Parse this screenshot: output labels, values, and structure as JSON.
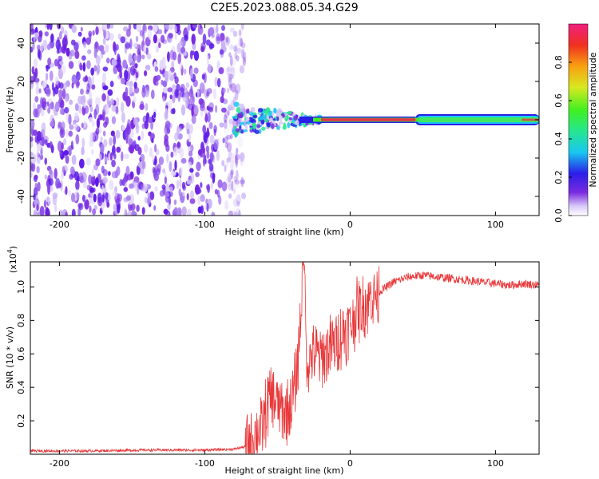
{
  "title": "C2E5.2023.088.05.34.G29",
  "colors": {
    "snr_line": "#e8383a",
    "spectrum_ridge": "#e8334a",
    "noise_purple": "#7a2be0"
  },
  "chart_data": [
    {
      "type": "heatmap",
      "xlabel": "Height of straight line (km)",
      "ylabel": "Frequency (Hz)",
      "xlim": [
        -220,
        130
      ],
      "ylim": [
        -50,
        50
      ],
      "x_ticks": [
        -200,
        -100,
        0,
        100
      ],
      "x_tick_labels": [
        "-200",
        "-100",
        "0",
        "100"
      ],
      "y_ticks": [
        -40,
        -20,
        0,
        20,
        40
      ],
      "y_tick_labels": [
        "-40",
        "-20",
        "0",
        "20",
        "40"
      ],
      "colorbar": {
        "label": "Normalized spectral amplitude",
        "range": [
          0,
          1
        ],
        "ticks": [
          0.0,
          0.2,
          0.4,
          0.6,
          0.8
        ],
        "tick_labels": [
          "0.0",
          "0.2",
          "0.4",
          "0.6",
          "0.8"
        ],
        "colormap": "rainbow"
      },
      "features": {
        "noise_region_x": [
          -220,
          -78
        ],
        "signal_ridge_frequency": 0,
        "strong_ridge_x": [
          -20,
          45
        ],
        "medium_ridge_x": [
          45,
          130
        ]
      },
      "grid": false
    },
    {
      "type": "line",
      "xlabel": "Height of straight line (km)",
      "ylabel": "SNR (10 * v/v)",
      "yscale_label": "(x10",
      "yscale_exponent": "4",
      "xlim": [
        -220,
        130
      ],
      "ylim": [
        0,
        1.15
      ],
      "x_ticks": [
        -200,
        -100,
        0,
        100
      ],
      "x_tick_labels": [
        "-200",
        "-100",
        "0",
        "100"
      ],
      "y_ticks": [
        0.2,
        0.4,
        0.6,
        0.8,
        1.0
      ],
      "y_tick_labels": [
        "0.2",
        "0.4",
        "0.6",
        "0.8",
        "1.0"
      ],
      "grid": false,
      "series": [
        {
          "x": [
            -220,
            -180,
            -140,
            -100,
            -80,
            -70,
            -60,
            -55,
            -50,
            -45,
            -40,
            -36,
            -32,
            -30,
            -25,
            -20,
            -15,
            -10,
            -5,
            0,
            5,
            10,
            15,
            20,
            25,
            30,
            40,
            50,
            60,
            70,
            80,
            90,
            100,
            110,
            120,
            130
          ],
          "values": [
            0.02,
            0.02,
            0.025,
            0.025,
            0.03,
            0.05,
            0.18,
            0.35,
            0.3,
            0.25,
            0.3,
            0.55,
            1.12,
            0.55,
            0.6,
            0.58,
            0.62,
            0.66,
            0.72,
            0.78,
            0.85,
            0.9,
            0.94,
            0.97,
            1.0,
            1.03,
            1.06,
            1.07,
            1.06,
            1.05,
            1.04,
            1.03,
            1.02,
            1.01,
            1.02,
            1.01
          ]
        }
      ]
    }
  ]
}
